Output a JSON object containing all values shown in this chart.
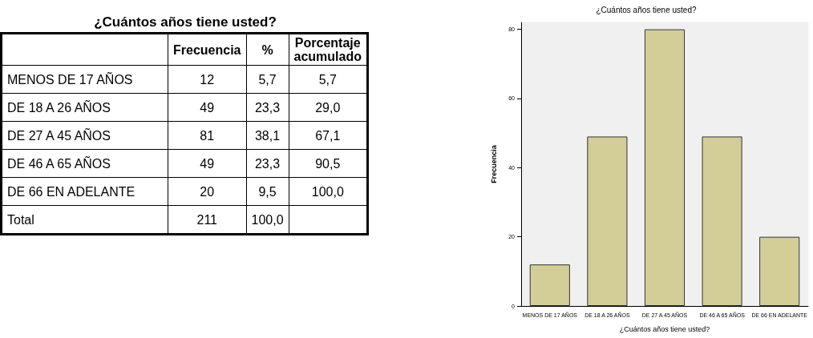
{
  "chart_data": [
    {
      "type": "other",
      "title": "¿Cuántos años tiene usted?",
      "categories": [
        "MENOS DE 17 AÑOS",
        "DE 18 A 26 AÑOS",
        "DE 27 A 45 AÑOS",
        "DE 46 A 65 AÑOS",
        "DE 66 EN ADELANTE",
        "Total"
      ],
      "series": [
        {
          "name": "Frecuencia",
          "values": [
            12,
            49,
            81,
            49,
            20,
            211
          ]
        },
        {
          "name": "%",
          "values": [
            5.7,
            23.3,
            38.1,
            23.3,
            9.5,
            100.0
          ],
          "value_labels": [
            "5,7",
            "23,3",
            "38,1",
            "23,3",
            "9,5",
            "100,0"
          ]
        },
        {
          "name": "Porcentaje acumulado",
          "values": [
            5.7,
            29.0,
            67.1,
            90.5,
            100.0,
            null
          ],
          "value_labels": [
            "5,7",
            "29,0",
            "67,1",
            "90,5",
            "100,0",
            null
          ]
        }
      ],
      "data_labels": true
    },
    {
      "type": "bar",
      "title": "¿Cuántos años tiene usted?",
      "xlabel": "¿Cuántos años tiene usted?",
      "ylabel": "Frecuencia",
      "categories": [
        "MENOS DE 17 AÑOS",
        "DE 18 A 26 AÑOS",
        "DE 27 A 45 AÑOS",
        "DE 46 A 65 AÑOS",
        "DE 66 EN ADELANTE"
      ],
      "values": [
        12,
        49,
        80,
        49,
        20
      ],
      "color": "#d3ce98",
      "ylim": [
        0,
        82
      ],
      "yticks": [
        0,
        20,
        40,
        60,
        80
      ],
      "grid": false
    }
  ]
}
